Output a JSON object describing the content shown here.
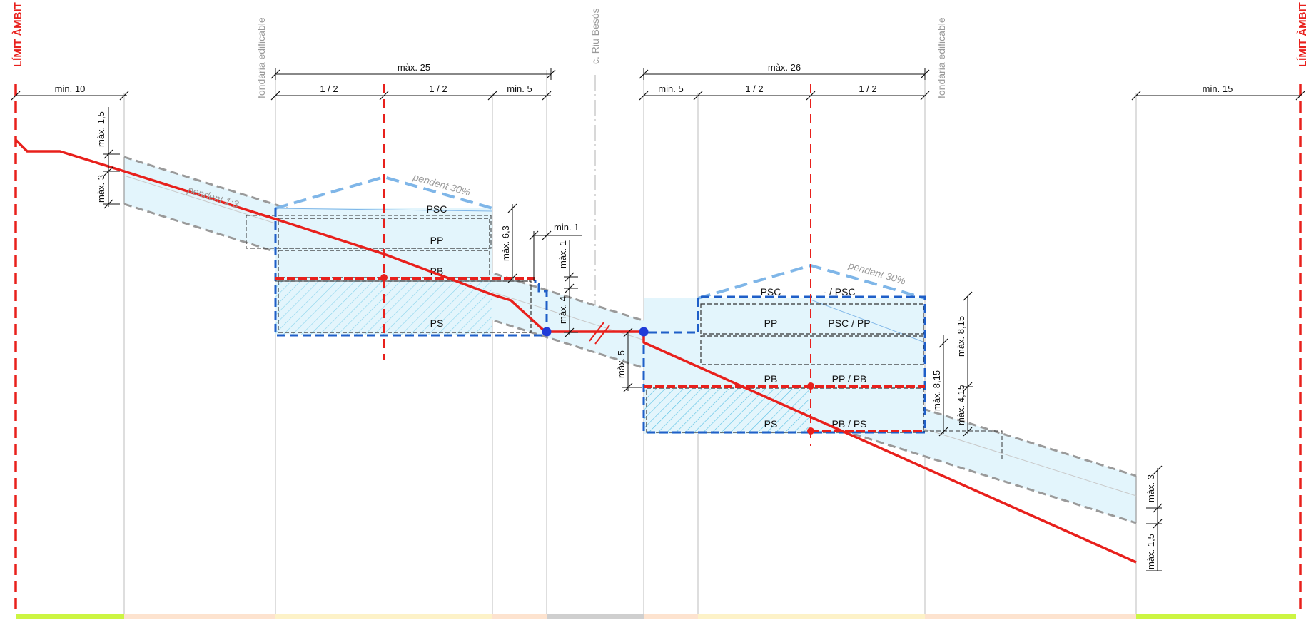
{
  "colors": {
    "terrain": "#e8201c",
    "limit": "#e8201c",
    "axis": "#e8201c",
    "envelope_fill": "#e3f5fc",
    "envelope_edge": "#9a9a9a",
    "roof": "#7fb6e8",
    "building": "#1f5fc8",
    "hatch": "#3fb7e0",
    "point_red": "#e8201c",
    "point_blue": "#1f3bd8",
    "zone_green": "#ccf542",
    "zone_orange": "#fde3cf",
    "zone_yellow": "#fdf2c8",
    "zone_grey": "#cfcfcf"
  },
  "labels": {
    "limit_left": "LÍMIT ÀMBIT",
    "limit_right": "LÍMIT ÀMBIT",
    "fondaria_left": "fondària edificable",
    "fondaria_right": "fondària edificable",
    "street": "c. Riu Besòs",
    "slope_terrain": "pendent 1:3",
    "roof_slope_left": "pendent 30%",
    "roof_slope_right": "pendent 30%"
  },
  "dimensions": {
    "top_left": "màx. 25",
    "top_right": "màx. 26",
    "min10": "min. 10",
    "half_l1": "1 / 2",
    "half_l2": "1 / 2",
    "min5_l": "min. 5",
    "min5_r": "min. 5",
    "half_r1": "1 / 2",
    "half_r2": "1 / 2",
    "min15": "min. 15",
    "max15_l": "màx. 1,5",
    "max3_l": "màx. 3",
    "max63": "màx. 6,3",
    "min1": "min. 1",
    "max1": "màx. 1",
    "max4": "màx. 4",
    "max5": "màx. 5",
    "max815_a": "màx. 8,15",
    "max815_b": "màx. 8,15",
    "max415": "màx. 4,15",
    "max3_r": "màx. 3",
    "max15_r": "màx. 1,5"
  },
  "floors_left": {
    "psc": "PSC",
    "pp": "PP",
    "pb": "PB",
    "ps": "PS"
  },
  "floors_right": {
    "psc": "PSC",
    "psc_alt": "- / PSC",
    "pp": "PP",
    "pp_alt": "PSC / PP",
    "pb": "PB",
    "pb_alt": "PP / PB",
    "ps": "PS",
    "ps_alt": "PB / PS"
  }
}
